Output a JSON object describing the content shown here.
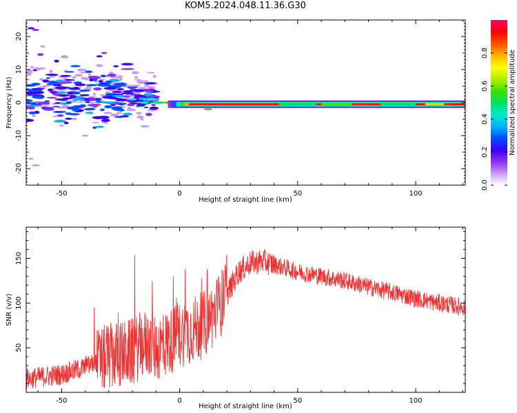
{
  "title": "KOM5.2024.048.11.36.G30",
  "chart_data": [
    {
      "type": "heatmap",
      "xlabel": "Height of straight line (km)",
      "ylabel": "Frequency (Hz)",
      "xlim": [
        -65,
        121
      ],
      "ylim": [
        -25,
        25
      ],
      "xticks": [
        -50,
        0,
        50,
        100
      ],
      "yticks": [
        -20,
        -10,
        0,
        10,
        20
      ],
      "colorbar": {
        "label": "Normalized spectral amplitude",
        "range": [
          0,
          1
        ],
        "ticks": [
          0.0,
          0.2,
          0.4,
          0.6,
          0.8
        ],
        "tick_labels": [
          "0.0",
          "0.2",
          "0.4",
          "0.6",
          "0.8"
        ],
        "colors": [
          "#ffffff",
          "#c89af2",
          "#8b2ff0",
          "#3c00ff",
          "#0050ff",
          "#00b4ff",
          "#00eacc",
          "#00e060",
          "#40e000",
          "#b0f000",
          "#ffff00",
          "#ffb000",
          "#ff5000",
          "#ff0000",
          "#ff0070"
        ]
      },
      "band_center_hz": -0.5,
      "band_x_range": [
        -5,
        121
      ]
    },
    {
      "type": "line",
      "xlabel": "Height of straight line (km)",
      "ylabel": "SNR (v/v)",
      "xlim": [
        -65,
        121
      ],
      "ylim": [
        0,
        185
      ],
      "xticks": [
        -50,
        0,
        50,
        100
      ],
      "yticks": [
        50,
        100,
        150
      ],
      "color": "#f03030",
      "trend": {
        "x": [
          -65,
          -50,
          -40,
          -30,
          -20,
          -15,
          -10,
          -5,
          0,
          5,
          10,
          15,
          20,
          25,
          30,
          35,
          40,
          50,
          60,
          70,
          80,
          90,
          100,
          110,
          121
        ],
        "snr": [
          15,
          20,
          28,
          40,
          45,
          55,
          50,
          55,
          65,
          70,
          75,
          90,
          110,
          135,
          145,
          147,
          143,
          135,
          130,
          125,
          118,
          112,
          105,
          100,
          95
        ]
      }
    }
  ]
}
